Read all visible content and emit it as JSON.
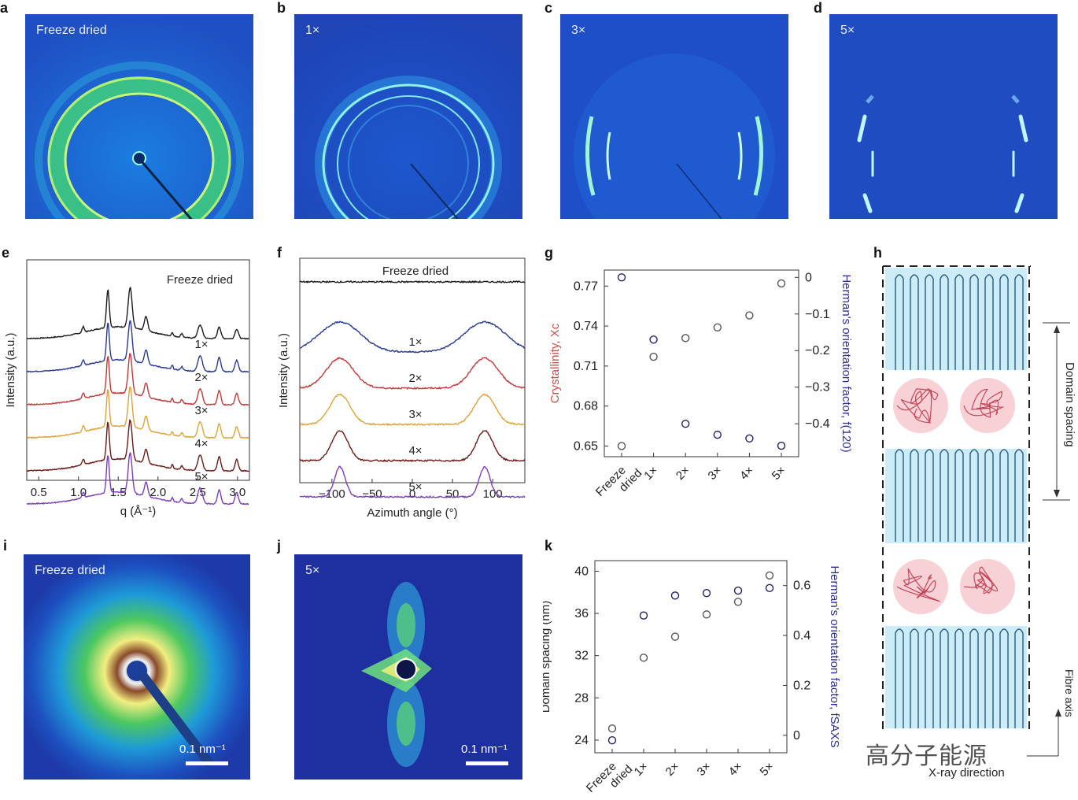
{
  "panels": {
    "a": {
      "letter": "a",
      "label": "Freeze dried"
    },
    "b": {
      "letter": "b",
      "label": "1×"
    },
    "c": {
      "letter": "c",
      "label": "3×"
    },
    "d": {
      "letter": "d",
      "label": "5×"
    },
    "e": {
      "letter": "e"
    },
    "f": {
      "letter": "f"
    },
    "g": {
      "letter": "g"
    },
    "h": {
      "letter": "h",
      "domain_spacing_label": "Domain spacing",
      "fibre_axis_label": "Fibre axis",
      "xray_label": "X-ray direction"
    },
    "i": {
      "letter": "i",
      "label": "Freeze dried",
      "scale": "0.1 nm⁻¹"
    },
    "j": {
      "letter": "j",
      "label": "5×",
      "scale": "0.1 nm⁻¹"
    },
    "k": {
      "letter": "k"
    }
  },
  "watermark": "高分子能源",
  "colors": {
    "freeze": "#1a1a1a",
    "1x": "#2a3b8f",
    "2x": "#c0393b",
    "3x": "#d9a53a",
    "4x": "#6b1a1a",
    "5x": "#7b3fb5",
    "crystal_axis": "#c0504d",
    "orient_axis": "#2b2f8f"
  },
  "chart_data": [
    {
      "id": "e",
      "type": "line",
      "title": "",
      "xlabel": "q (Å⁻¹)",
      "ylabel": "Intensity (a.u.)",
      "xlim": [
        0.35,
        3.15
      ],
      "xticks": [
        0.5,
        1.0,
        1.5,
        2.0,
        2.5,
        3.0
      ],
      "xtick_labels": [
        "0.5",
        "1.0",
        "1.5",
        "2.0",
        "2.5",
        "3.0"
      ],
      "peaks_q": [
        1.06,
        1.37,
        1.65,
        1.85,
        2.18,
        2.3,
        2.53,
        2.77,
        2.99
      ],
      "series": [
        {
          "name": "Freeze dried",
          "color_key": "freeze"
        },
        {
          "name": "1×",
          "color_key": "1x"
        },
        {
          "name": "2×",
          "color_key": "2x"
        },
        {
          "name": "3×",
          "color_key": "3x"
        },
        {
          "name": "4×",
          "color_key": "4x"
        },
        {
          "name": "5×",
          "color_key": "5x"
        }
      ]
    },
    {
      "id": "f",
      "type": "line",
      "title": "",
      "xlabel": "Azimuth angle (°)",
      "ylabel": "Intensity (a.u.)",
      "xlim": [
        -140,
        140
      ],
      "xticks": [
        -100,
        -50,
        0,
        50,
        100
      ],
      "xtick_labels": [
        "−100",
        "−50",
        "0",
        "50",
        "100"
      ],
      "peak_center_deg": [
        -90,
        90
      ],
      "series": [
        {
          "name": "Freeze dried",
          "color_key": "freeze",
          "fwhm_deg": 0
        },
        {
          "name": "1×",
          "color_key": "1x",
          "fwhm_deg": 60
        },
        {
          "name": "2×",
          "color_key": "2x",
          "fwhm_deg": 40
        },
        {
          "name": "3×",
          "color_key": "3x",
          "fwhm_deg": 30
        },
        {
          "name": "4×",
          "color_key": "4x",
          "fwhm_deg": 24
        },
        {
          "name": "5×",
          "color_key": "5x",
          "fwhm_deg": 16
        }
      ]
    },
    {
      "id": "g",
      "type": "scatter",
      "categories": [
        "Freeze dried",
        "1×",
        "2×",
        "3×",
        "4×",
        "5×"
      ],
      "ylabel_left": "Crystallinity, Xc",
      "ylabel_right": "Herman's orientation factor, f(120)",
      "ylim_left": [
        0.642,
        0.782
      ],
      "yticks_left": [
        0.65,
        0.68,
        0.71,
        0.74,
        0.77
      ],
      "ytick_labels_left": [
        "0.65",
        "0.68",
        "0.71",
        "0.74",
        "0.77"
      ],
      "ylim_right": [
        -0.49,
        0.02
      ],
      "yticks_right": [
        0,
        -0.1,
        -0.2,
        -0.3,
        -0.4
      ],
      "ytick_labels_right": [
        "0",
        "−0.1",
        "−0.2",
        "−0.3",
        "−0.4"
      ],
      "series": [
        {
          "name": "Crystallinity",
          "axis": "left",
          "color_key": "crystal_axis",
          "values": [
            0.65,
            0.717,
            0.731,
            0.739,
            0.748,
            0.772
          ]
        },
        {
          "name": "Orientation factor f(120)",
          "axis": "right",
          "color_key": "orient_axis",
          "values": [
            0.0,
            -0.17,
            -0.4,
            -0.43,
            -0.44,
            -0.46
          ]
        }
      ]
    },
    {
      "id": "k",
      "type": "scatter",
      "categories": [
        "Freeze dried",
        "1×",
        "2×",
        "3×",
        "4×",
        "5×"
      ],
      "ylabel_left": "Domain spacing (nm)",
      "ylabel_right": "Herman's orientation factor, fSAXS",
      "ylim_left": [
        22.8,
        41.0
      ],
      "yticks_left": [
        24,
        28,
        32,
        36,
        40
      ],
      "ytick_labels_left": [
        "24",
        "28",
        "32",
        "36",
        "40"
      ],
      "ylim_right": [
        -0.07,
        0.7
      ],
      "yticks_right": [
        0,
        0.2,
        0.4,
        0.6
      ],
      "ytick_labels_right": [
        "0",
        "0.2",
        "0.4",
        "0.6"
      ],
      "series": [
        {
          "name": "Domain spacing",
          "axis": "left",
          "color_key": "freeze",
          "values": [
            25.1,
            31.8,
            33.8,
            35.9,
            37.1,
            39.6
          ]
        },
        {
          "name": "Orientation factor (SAXS)",
          "axis": "right",
          "color_key": "orient_axis",
          "values": [
            -0.02,
            0.48,
            0.56,
            0.57,
            0.58,
            0.59
          ]
        }
      ]
    }
  ]
}
